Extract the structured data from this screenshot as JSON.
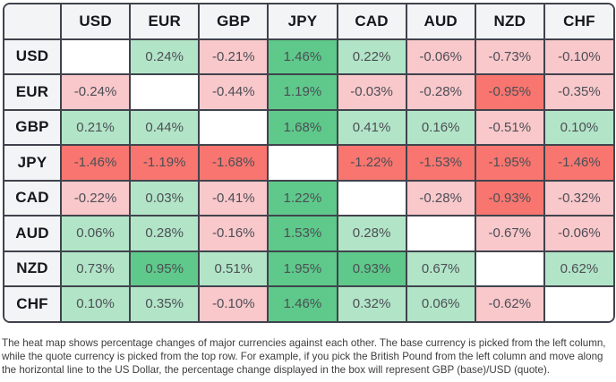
{
  "chart_data": {
    "type": "heatmap",
    "title": "",
    "x_categories": [
      "USD",
      "EUR",
      "GBP",
      "JPY",
      "CAD",
      "AUD",
      "NZD",
      "CHF"
    ],
    "y_categories": [
      "USD",
      "EUR",
      "GBP",
      "JPY",
      "CAD",
      "AUD",
      "NZD",
      "CHF"
    ],
    "values_pct": [
      [
        null,
        0.24,
        -0.21,
        1.46,
        0.22,
        -0.06,
        -0.73,
        -0.1
      ],
      [
        -0.24,
        null,
        -0.44,
        1.19,
        -0.03,
        -0.28,
        -0.95,
        -0.35
      ],
      [
        0.21,
        0.44,
        null,
        1.68,
        0.41,
        0.16,
        -0.51,
        0.1
      ],
      [
        -1.46,
        -1.19,
        -1.68,
        null,
        -1.22,
        -1.53,
        -1.95,
        -1.46
      ],
      [
        -0.22,
        0.03,
        -0.41,
        1.22,
        null,
        -0.28,
        -0.93,
        -0.32
      ],
      [
        0.06,
        0.28,
        -0.16,
        1.53,
        0.28,
        null,
        -0.67,
        -0.06
      ],
      [
        0.73,
        0.95,
        0.51,
        1.95,
        0.93,
        0.67,
        null,
        0.62
      ],
      [
        0.1,
        0.35,
        -0.1,
        1.46,
        0.32,
        0.06,
        -0.62,
        null
      ]
    ]
  },
  "table": {
    "corner_label": "",
    "column_headers": [
      "USD",
      "EUR",
      "GBP",
      "JPY",
      "CAD",
      "AUD",
      "NZD",
      "CHF"
    ],
    "row_headers": [
      "USD",
      "EUR",
      "GBP",
      "JPY",
      "CAD",
      "AUD",
      "NZD",
      "CHF"
    ],
    "cells": [
      [
        "",
        "0.24%",
        "-0.21%",
        "1.46%",
        "0.22%",
        "-0.06%",
        "-0.73%",
        "-0.10%"
      ],
      [
        "-0.24%",
        "",
        "-0.44%",
        "1.19%",
        "-0.03%",
        "-0.28%",
        "-0.95%",
        "-0.35%"
      ],
      [
        "0.21%",
        "0.44%",
        "",
        "1.68%",
        "0.41%",
        "0.16%",
        "-0.51%",
        "0.10%"
      ],
      [
        "-1.46%",
        "-1.19%",
        "-1.68%",
        "",
        "-1.22%",
        "-1.53%",
        "-1.95%",
        "-1.46%"
      ],
      [
        "-0.22%",
        "0.03%",
        "-0.41%",
        "1.22%",
        "",
        "-0.28%",
        "-0.93%",
        "-0.32%"
      ],
      [
        "0.06%",
        "0.28%",
        "-0.16%",
        "1.53%",
        "0.28%",
        "",
        "-0.67%",
        "-0.06%"
      ],
      [
        "0.73%",
        "0.95%",
        "0.51%",
        "1.95%",
        "0.93%",
        "0.67%",
        "",
        "0.62%"
      ],
      [
        "0.10%",
        "0.35%",
        "-0.10%",
        "1.46%",
        "0.32%",
        "0.06%",
        "-0.62%",
        ""
      ]
    ]
  },
  "colors": {
    "positive_strong": "#5ec98a",
    "positive_light": "#b2e5c7",
    "negative_strong": "#f8766f",
    "negative_light": "#f9c8cb",
    "strong_threshold_abs_pct": 0.9,
    "header_bg": "#f3f4f6",
    "border": "#40434d",
    "empty_cell_bg": "#ffffff"
  },
  "footer": {
    "text": "The heat map shows percentage changes of major currencies against each other. The base currency is picked from the left column, while the quote currency is picked from the top row. For example, if you pick the British Pound from the left column and move along the horizontal line to the US Dollar, the percentage change displayed in the box will represent GBP (base)/USD (quote)."
  }
}
